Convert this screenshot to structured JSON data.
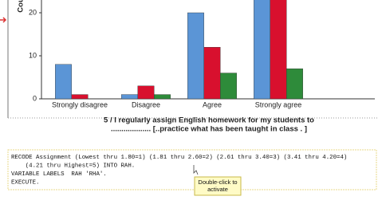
{
  "chart_data": {
    "type": "bar",
    "y_label": "Count",
    "x_label": [
      "5 / I regularly assign English homework for my students to",
      "................... [..practice what has been taught in class . ]"
    ],
    "categories": [
      "Strongly disagree",
      "Disagree",
      "Agree",
      "Strongly agree"
    ],
    "series": [
      {
        "color": "#5b95d6",
        "values": [
          8,
          1,
          20,
          25
        ]
      },
      {
        "color": "#d8102e",
        "values": [
          1,
          3,
          12,
          24
        ]
      },
      {
        "color": "#2e8b3a",
        "values": [
          0,
          1,
          6,
          7
        ]
      }
    ],
    "ylim": [
      0,
      23
    ],
    "yticks": [
      0,
      10,
      20
    ]
  },
  "syntax": {
    "lines": [
      "RECODE Assignment (Lowest thru 1.80=1) (1.81 thru 2.60=2) (2.61 thru 3.40=3) (3.41 thru 4.20=4)",
      "    (4.21 thru Highest=5) INTO RAH.",
      "VARIABLE LABELS  RAH 'RHA'.",
      "EXECUTE."
    ]
  },
  "tooltip": {
    "lines": [
      "Double-click to",
      "activate"
    ]
  }
}
